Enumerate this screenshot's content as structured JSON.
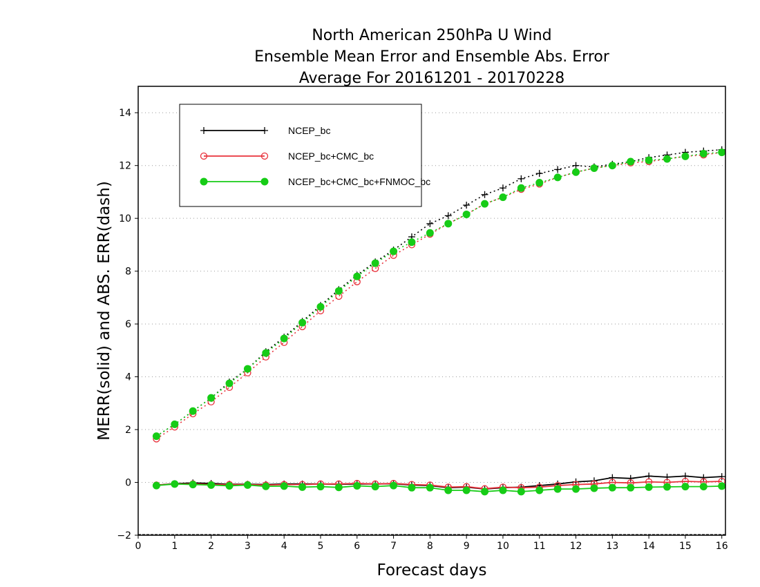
{
  "chart_data": {
    "type": "line",
    "title_lines": [
      "North American 250hPa U Wind",
      "Ensemble Mean Error and Ensemble Abs. Error",
      "Average For 20161201 - 20170228"
    ],
    "xlabel": "Forecast days",
    "ylabel": "MERR(solid) and ABS. ERR(dash)",
    "xlim": [
      0,
      16.1
    ],
    "ylim": [
      -2,
      15
    ],
    "xticks": [
      "0",
      "1",
      "2",
      "3",
      "4",
      "5",
      "6",
      "7",
      "8",
      "9",
      "10",
      "11",
      "12",
      "13",
      "14",
      "15",
      "16"
    ],
    "yticks": [
      "-2",
      "0",
      "2",
      "4",
      "6",
      "8",
      "10",
      "12",
      "14"
    ],
    "grid": "horizontal dotted",
    "legend_position": "top-left",
    "x": [
      0.5,
      1,
      1.5,
      2,
      2.5,
      3,
      3.5,
      4,
      4.5,
      5,
      5.5,
      6,
      6.5,
      7,
      7.5,
      8,
      8.5,
      9,
      9.5,
      10,
      10.5,
      11,
      11.5,
      12,
      12.5,
      13,
      13.5,
      14,
      14.5,
      15,
      15.5,
      16
    ],
    "series": [
      {
        "name": "NCEP_bc",
        "color": "#000000",
        "marker": "plus",
        "mean_error": [
          -0.1,
          -0.05,
          -0.02,
          -0.04,
          -0.07,
          -0.07,
          -0.08,
          -0.06,
          -0.06,
          -0.06,
          -0.07,
          -0.06,
          -0.06,
          -0.05,
          -0.1,
          -0.12,
          -0.2,
          -0.18,
          -0.25,
          -0.2,
          -0.18,
          -0.12,
          -0.06,
          0.02,
          0.06,
          0.18,
          0.15,
          0.24,
          0.2,
          0.24,
          0.18,
          0.22
        ],
        "abs_error": [
          1.75,
          2.2,
          2.7,
          3.2,
          3.8,
          4.3,
          4.95,
          5.5,
          6.1,
          6.7,
          7.3,
          7.85,
          8.35,
          8.8,
          9.3,
          9.8,
          10.1,
          10.5,
          10.9,
          11.15,
          11.5,
          11.7,
          11.85,
          12.0,
          11.95,
          12.05,
          12.15,
          12.3,
          12.4,
          12.5,
          12.55,
          12.6
        ]
      },
      {
        "name": "NCEP_bc+CMC_bc",
        "color": "#e8303a",
        "marker": "open-circle",
        "mean_error": [
          -0.1,
          -0.06,
          -0.06,
          -0.08,
          -0.08,
          -0.08,
          -0.1,
          -0.08,
          -0.08,
          -0.06,
          -0.06,
          -0.04,
          -0.06,
          -0.04,
          -0.08,
          -0.1,
          -0.18,
          -0.16,
          -0.24,
          -0.18,
          -0.2,
          -0.18,
          -0.12,
          -0.08,
          -0.06,
          0.0,
          -0.02,
          0.02,
          0.0,
          0.04,
          0.02,
          0.04
        ],
        "abs_error": [
          1.65,
          2.1,
          2.6,
          3.05,
          3.6,
          4.15,
          4.75,
          5.3,
          5.9,
          6.5,
          7.05,
          7.6,
          8.1,
          8.6,
          9.0,
          9.4,
          9.8,
          10.15,
          10.55,
          10.8,
          11.1,
          11.3,
          11.55,
          11.75,
          11.9,
          12.0,
          12.1,
          12.15,
          12.25,
          12.35,
          12.4,
          12.5
        ]
      },
      {
        "name": "NCEP_bc+CMC_bc+FNMOC_bc",
        "color": "#16cc16",
        "marker": "filled-circle",
        "mean_error": [
          -0.12,
          -0.06,
          -0.08,
          -0.1,
          -0.13,
          -0.1,
          -0.15,
          -0.14,
          -0.18,
          -0.16,
          -0.19,
          -0.13,
          -0.16,
          -0.12,
          -0.2,
          -0.2,
          -0.3,
          -0.3,
          -0.35,
          -0.3,
          -0.35,
          -0.3,
          -0.25,
          -0.25,
          -0.22,
          -0.2,
          -0.2,
          -0.18,
          -0.17,
          -0.16,
          -0.16,
          -0.14
        ],
        "abs_error": [
          1.75,
          2.2,
          2.7,
          3.2,
          3.75,
          4.3,
          4.9,
          5.45,
          6.05,
          6.65,
          7.25,
          7.8,
          8.3,
          8.75,
          9.1,
          9.45,
          9.8,
          10.15,
          10.55,
          10.8,
          11.15,
          11.35,
          11.55,
          11.75,
          11.9,
          12.0,
          12.15,
          12.2,
          12.25,
          12.35,
          12.45,
          12.5
        ]
      }
    ]
  }
}
